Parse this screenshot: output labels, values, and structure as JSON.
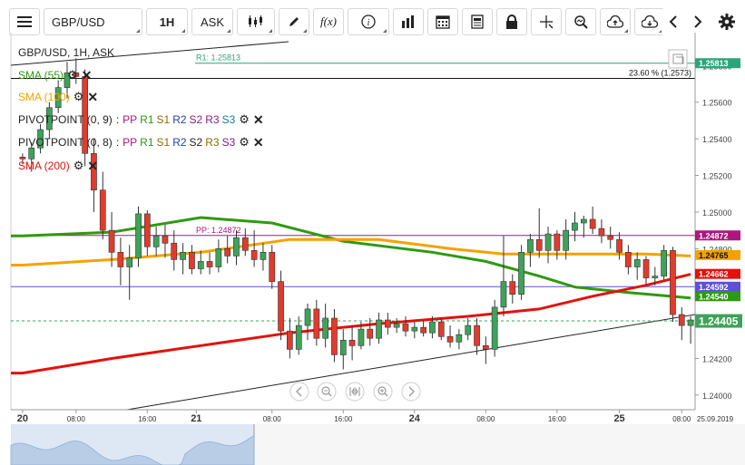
{
  "toolbar": {
    "symbol": "GBP/USD",
    "timeframe": "1H",
    "price_type": "ASK",
    "fx_label": "f(x)"
  },
  "chart_title": "GBP/USD, 1H, ASK",
  "indicators": [
    {
      "label": "SMA (55)",
      "color": "#2e9a10"
    },
    {
      "label": "SMA (100)",
      "color": "#f5a100"
    },
    {
      "label": "PIVOTPOINT (0, 9)",
      "color": "#222222"
    },
    {
      "label": "PIVOTPOINT (0, 8)",
      "color": "#222222"
    },
    {
      "label": "SMA (200)",
      "color": "#e3120b"
    }
  ],
  "pivot_items": [
    {
      "label": "PP",
      "color": "#b0157e"
    },
    {
      "label": "R1",
      "color": "#2e9a10"
    },
    {
      "label": "S1",
      "color": "#8a6d00"
    },
    {
      "label": "R2",
      "color": "#1f3fae"
    },
    {
      "label": "S2",
      "color": "#8b1a8b"
    },
    {
      "label": "R3",
      "color": "#8b1a8b"
    },
    {
      "label": "S3",
      "color": "#0f7f8f"
    }
  ],
  "pivot_items_2": [
    {
      "label": "PP",
      "color": "#b0157e"
    },
    {
      "label": "R1",
      "color": "#2e9a10"
    },
    {
      "label": "S1",
      "color": "#8a6d00"
    },
    {
      "label": "R2",
      "color": "#1f3fae"
    },
    {
      "label": "S2",
      "color": "#222222"
    },
    {
      "label": "R3",
      "color": "#8a6d00"
    },
    {
      "label": "S3",
      "color": "#8b1a8b"
    }
  ],
  "chart_data": {
    "type": "candlestick",
    "y_ticks": [
      "1.25800",
      "1.25600",
      "1.25400",
      "1.25200",
      "1.25000",
      "1.24800",
      "1.24600",
      "1.24400",
      "1.24200",
      "1.24000"
    ],
    "y_tick_values": [
      1.258,
      1.256,
      1.254,
      1.252,
      1.25,
      1.248,
      1.246,
      1.244,
      1.242,
      1.24
    ],
    "ylim": [
      1.2392,
      1.2598
    ],
    "x_ticks": [
      {
        "label": "20",
        "bold": true
      },
      {
        "label": "08:00",
        "bold": false
      },
      {
        "label": "16:00",
        "bold": false
      },
      {
        "label": "21",
        "bold": true
      },
      {
        "label": "08:00",
        "bold": false
      },
      {
        "label": "16:00",
        "bold": false
      },
      {
        "label": "24",
        "bold": true
      },
      {
        "label": "08:00",
        "bold": false
      },
      {
        "label": "16:00",
        "bold": false
      },
      {
        "label": "25",
        "bold": true
      },
      {
        "label": "08:00",
        "bold": false
      },
      {
        "label": "25.09.2019",
        "bold": false
      }
    ],
    "up_color": "#3ea35a",
    "down_color": "#e23b2e",
    "candles": [
      [
        1.253,
        1.2532,
        1.2526,
        1.2529
      ],
      [
        1.2529,
        1.2538,
        1.2522,
        1.2535
      ],
      [
        1.2535,
        1.2548,
        1.2532,
        1.2545
      ],
      [
        1.2545,
        1.256,
        1.254,
        1.2557
      ],
      [
        1.2557,
        1.2572,
        1.2554,
        1.2568
      ],
      [
        1.2568,
        1.2582,
        1.2562,
        1.2576
      ],
      [
        1.2576,
        1.2584,
        1.257,
        1.2574
      ],
      [
        1.2574,
        1.2578,
        1.2525,
        1.2532
      ],
      [
        1.2532,
        1.254,
        1.25,
        1.2512
      ],
      [
        1.2512,
        1.2522,
        1.2485,
        1.249
      ],
      [
        1.249,
        1.25,
        1.247,
        1.2478
      ],
      [
        1.2478,
        1.2486,
        1.246,
        1.247
      ],
      [
        1.247,
        1.2482,
        1.2452,
        1.2475
      ],
      [
        1.2475,
        1.2503,
        1.247,
        1.2499
      ],
      [
        1.2499,
        1.2501,
        1.2476,
        1.2481
      ],
      [
        1.2481,
        1.2492,
        1.2476,
        1.2487
      ],
      [
        1.2487,
        1.2493,
        1.2475,
        1.2483
      ],
      [
        1.2483,
        1.249,
        1.2468,
        1.2474
      ],
      [
        1.2474,
        1.2483,
        1.2466,
        1.2478
      ],
      [
        1.2478,
        1.2482,
        1.2466,
        1.2469
      ],
      [
        1.2469,
        1.2479,
        1.2466,
        1.2473
      ],
      [
        1.2473,
        1.2478,
        1.2466,
        1.247
      ],
      [
        1.247,
        1.2485,
        1.2467,
        1.248
      ],
      [
        1.248,
        1.2487,
        1.2472,
        1.2476
      ],
      [
        1.2476,
        1.249,
        1.2471,
        1.2486
      ],
      [
        1.2486,
        1.2491,
        1.2476,
        1.2479
      ],
      [
        1.2479,
        1.249,
        1.247,
        1.2474
      ],
      [
        1.2474,
        1.2483,
        1.2468,
        1.2478
      ],
      [
        1.2478,
        1.2482,
        1.2458,
        1.2462
      ],
      [
        1.2462,
        1.2468,
        1.243,
        1.2435
      ],
      [
        1.2435,
        1.2442,
        1.242,
        1.2425
      ],
      [
        1.2425,
        1.2443,
        1.2422,
        1.2438
      ],
      [
        1.2438,
        1.245,
        1.243,
        1.2447
      ],
      [
        1.2447,
        1.2452,
        1.2427,
        1.2431
      ],
      [
        1.2431,
        1.245,
        1.2426,
        1.2442
      ],
      [
        1.2442,
        1.2447,
        1.2418,
        1.2422
      ],
      [
        1.2422,
        1.2436,
        1.2414,
        1.243
      ],
      [
        1.243,
        1.2438,
        1.2419,
        1.2427
      ],
      [
        1.2427,
        1.244,
        1.2425,
        1.2436
      ],
      [
        1.2436,
        1.2442,
        1.2427,
        1.2431
      ],
      [
        1.2431,
        1.2445,
        1.2428,
        1.2441
      ],
      [
        1.2441,
        1.2445,
        1.2433,
        1.2437
      ],
      [
        1.2437,
        1.2442,
        1.2434,
        1.2439
      ],
      [
        1.2439,
        1.2443,
        1.2432,
        1.2435
      ],
      [
        1.2435,
        1.244,
        1.2431,
        1.2437
      ],
      [
        1.2437,
        1.2441,
        1.2432,
        1.2434
      ],
      [
        1.2434,
        1.2443,
        1.2431,
        1.244
      ],
      [
        1.244,
        1.2442,
        1.243,
        1.2432
      ],
      [
        1.2432,
        1.2438,
        1.2426,
        1.2429
      ],
      [
        1.2429,
        1.2436,
        1.2425,
        1.2433
      ],
      [
        1.2433,
        1.2442,
        1.243,
        1.2438
      ],
      [
        1.2438,
        1.2442,
        1.2422,
        1.2427
      ],
      [
        1.2427,
        1.2432,
        1.2417,
        1.2425
      ],
      [
        1.2425,
        1.2452,
        1.2421,
        1.2448
      ],
      [
        1.2448,
        1.2487,
        1.2443,
        1.2462
      ],
      [
        1.2462,
        1.2466,
        1.245,
        1.2455
      ],
      [
        1.2455,
        1.2482,
        1.2452,
        1.2478
      ],
      [
        1.2478,
        1.2488,
        1.247,
        1.2485
      ],
      [
        1.2485,
        1.2502,
        1.2475,
        1.2479
      ],
      [
        1.2479,
        1.2492,
        1.2472,
        1.2488
      ],
      [
        1.2488,
        1.249,
        1.2474,
        1.2479
      ],
      [
        1.2479,
        1.2496,
        1.2474,
        1.249
      ],
      [
        1.249,
        1.25,
        1.2484,
        1.2494
      ],
      [
        1.2494,
        1.2498,
        1.2486,
        1.2496
      ],
      [
        1.2496,
        1.2503,
        1.2488,
        1.2491
      ],
      [
        1.2491,
        1.2496,
        1.2483,
        1.2487
      ],
      [
        1.2487,
        1.2492,
        1.248,
        1.2485
      ],
      [
        1.2485,
        1.2489,
        1.2474,
        1.2478
      ],
      [
        1.2478,
        1.2482,
        1.2466,
        1.247
      ],
      [
        1.247,
        1.2478,
        1.2463,
        1.2474
      ],
      [
        1.2474,
        1.2476,
        1.246,
        1.2464
      ],
      [
        1.2464,
        1.247,
        1.246,
        1.2465
      ],
      [
        1.2465,
        1.2482,
        1.2463,
        1.2479
      ],
      [
        1.2479,
        1.2481,
        1.244,
        1.2444
      ],
      [
        1.2444,
        1.2448,
        1.243,
        1.2438
      ],
      [
        1.2438,
        1.2443,
        1.2428,
        1.2441
      ]
    ],
    "lines": [
      {
        "name": "SMA (55)",
        "color": "#2e9a10",
        "points": [
          [
            0,
            1.2487
          ],
          [
            10,
            1.2489
          ],
          [
            20,
            1.2497
          ],
          [
            28,
            1.2494
          ],
          [
            36,
            1.2484
          ],
          [
            46,
            1.2478
          ],
          [
            52,
            1.2473
          ],
          [
            58,
            1.2465
          ],
          [
            62,
            1.2459
          ],
          [
            68,
            1.2456
          ],
          [
            75,
            1.2453
          ]
        ]
      },
      {
        "name": "SMA (100)",
        "color": "#f5a100",
        "points": [
          [
            0,
            1.2471
          ],
          [
            10,
            1.2474
          ],
          [
            20,
            1.2478
          ],
          [
            30,
            1.2485
          ],
          [
            40,
            1.2485
          ],
          [
            48,
            1.248
          ],
          [
            54,
            1.2477
          ],
          [
            62,
            1.2477
          ],
          [
            70,
            1.2477
          ],
          [
            75,
            1.2476
          ]
        ]
      },
      {
        "name": "SMA (200)",
        "color": "#e3120b",
        "points": [
          [
            0,
            1.2412
          ],
          [
            10,
            1.242
          ],
          [
            20,
            1.2427
          ],
          [
            30,
            1.2434
          ],
          [
            40,
            1.2439
          ],
          [
            50,
            1.2443
          ],
          [
            58,
            1.2447
          ],
          [
            64,
            1.2454
          ],
          [
            70,
            1.246
          ],
          [
            75,
            1.2466
          ]
        ]
      }
    ],
    "levels": [
      {
        "label": "R1: 1.25813",
        "value": 1.25813,
        "color": "#2aa57a",
        "badge": "1.25813"
      },
      {
        "label": "23.60 % (1.2573)",
        "value": 1.2573,
        "color": "#111111",
        "badge": ""
      },
      {
        "label": "PP: 1.24872",
        "value": 1.24872,
        "color": "#b0157e",
        "badge": "1.24872"
      },
      {
        "label": "",
        "value": 1.24592,
        "color": "#5e4ed8",
        "badge": "1.24592"
      },
      {
        "label": "",
        "value": 1.24405,
        "color": "#3ea35a",
        "badge": "1.24405",
        "dashed": true
      }
    ],
    "price_badges": [
      {
        "value": 1.24765,
        "text": "1.24765",
        "color": "#f5a100"
      },
      {
        "value": 1.24662,
        "text": "1.24662",
        "color": "#e3120b"
      },
      {
        "value": 1.2454,
        "text": "1.24540",
        "color": "#2e9a10"
      }
    ]
  }
}
